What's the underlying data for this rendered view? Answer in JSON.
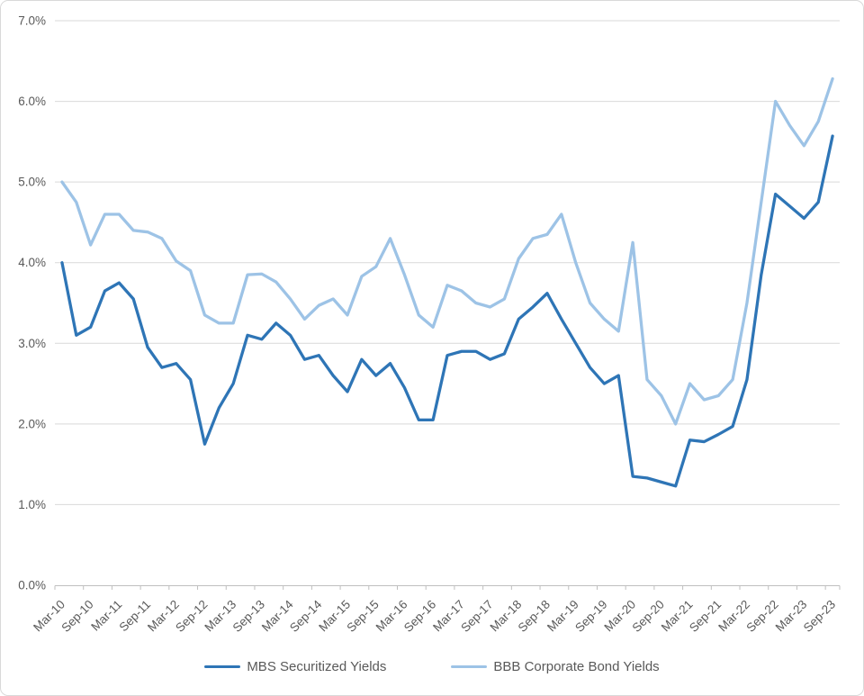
{
  "chart_data": {
    "type": "line",
    "title": "",
    "xlabel": "",
    "ylabel": "",
    "ylim": [
      0,
      7
    ],
    "y_tick_step": 1,
    "y_tick_labels": [
      "0.0%",
      "1.0%",
      "2.0%",
      "3.0%",
      "4.0%",
      "5.0%",
      "6.0%",
      "7.0%"
    ],
    "x_label_interval": 2,
    "grid": true,
    "legend_position": "bottom",
    "categories": [
      "Mar-10",
      "Jun-10",
      "Sep-10",
      "Dec-10",
      "Mar-11",
      "Jun-11",
      "Sep-11",
      "Dec-11",
      "Mar-12",
      "Jun-12",
      "Sep-12",
      "Dec-12",
      "Mar-13",
      "Jun-13",
      "Sep-13",
      "Dec-13",
      "Mar-14",
      "Jun-14",
      "Sep-14",
      "Dec-14",
      "Mar-15",
      "Jun-15",
      "Sep-15",
      "Dec-15",
      "Mar-16",
      "Jun-16",
      "Sep-16",
      "Dec-16",
      "Mar-17",
      "Jun-17",
      "Sep-17",
      "Dec-17",
      "Mar-18",
      "Jun-18",
      "Sep-18",
      "Dec-18",
      "Mar-19",
      "Jun-19",
      "Sep-19",
      "Dec-19",
      "Mar-20",
      "Jun-20",
      "Sep-20",
      "Dec-20",
      "Mar-21",
      "Jun-21",
      "Sep-21",
      "Dec-21",
      "Mar-22",
      "Jun-22",
      "Sep-22",
      "Dec-22",
      "Mar-23",
      "Jun-23",
      "Sep-23"
    ],
    "series": [
      {
        "name": "MBS Securitized Yields",
        "color": "#2E75B6",
        "values": [
          4.0,
          3.1,
          3.2,
          3.65,
          3.75,
          3.55,
          2.95,
          2.7,
          2.75,
          2.55,
          1.75,
          2.2,
          2.5,
          3.1,
          3.05,
          3.25,
          3.1,
          2.8,
          2.85,
          2.6,
          2.4,
          2.8,
          2.6,
          2.75,
          2.45,
          2.05,
          2.05,
          2.85,
          2.9,
          2.9,
          2.8,
          2.87,
          3.3,
          3.45,
          3.62,
          3.3,
          3.0,
          2.7,
          2.5,
          2.6,
          1.35,
          1.33,
          1.28,
          1.23,
          1.8,
          1.78,
          1.87,
          1.97,
          2.55,
          3.85,
          4.85,
          4.7,
          4.55,
          4.75,
          5.57
        ]
      },
      {
        "name": "BBB Corporate Bond Yields",
        "color": "#9DC3E6",
        "values": [
          5.0,
          4.75,
          4.22,
          4.6,
          4.6,
          4.4,
          4.38,
          4.3,
          4.02,
          3.9,
          3.35,
          3.25,
          3.25,
          3.85,
          3.86,
          3.76,
          3.55,
          3.3,
          3.47,
          3.55,
          3.35,
          3.83,
          3.95,
          4.3,
          3.85,
          3.35,
          3.2,
          3.72,
          3.65,
          3.5,
          3.45,
          3.55,
          4.05,
          4.3,
          4.35,
          4.6,
          4.0,
          3.5,
          3.3,
          3.15,
          4.25,
          2.55,
          2.35,
          2.0,
          2.5,
          2.3,
          2.35,
          2.55,
          3.5,
          4.75,
          6.0,
          5.7,
          5.45,
          5.75,
          6.28
        ]
      }
    ]
  },
  "colors": {
    "grid": "#D9D9D9",
    "axis_line": "#BFBFBF",
    "tick": "#BFBFBF",
    "text": "#595959",
    "frame_border": "#D9D9D9",
    "background": "#FFFFFF"
  }
}
